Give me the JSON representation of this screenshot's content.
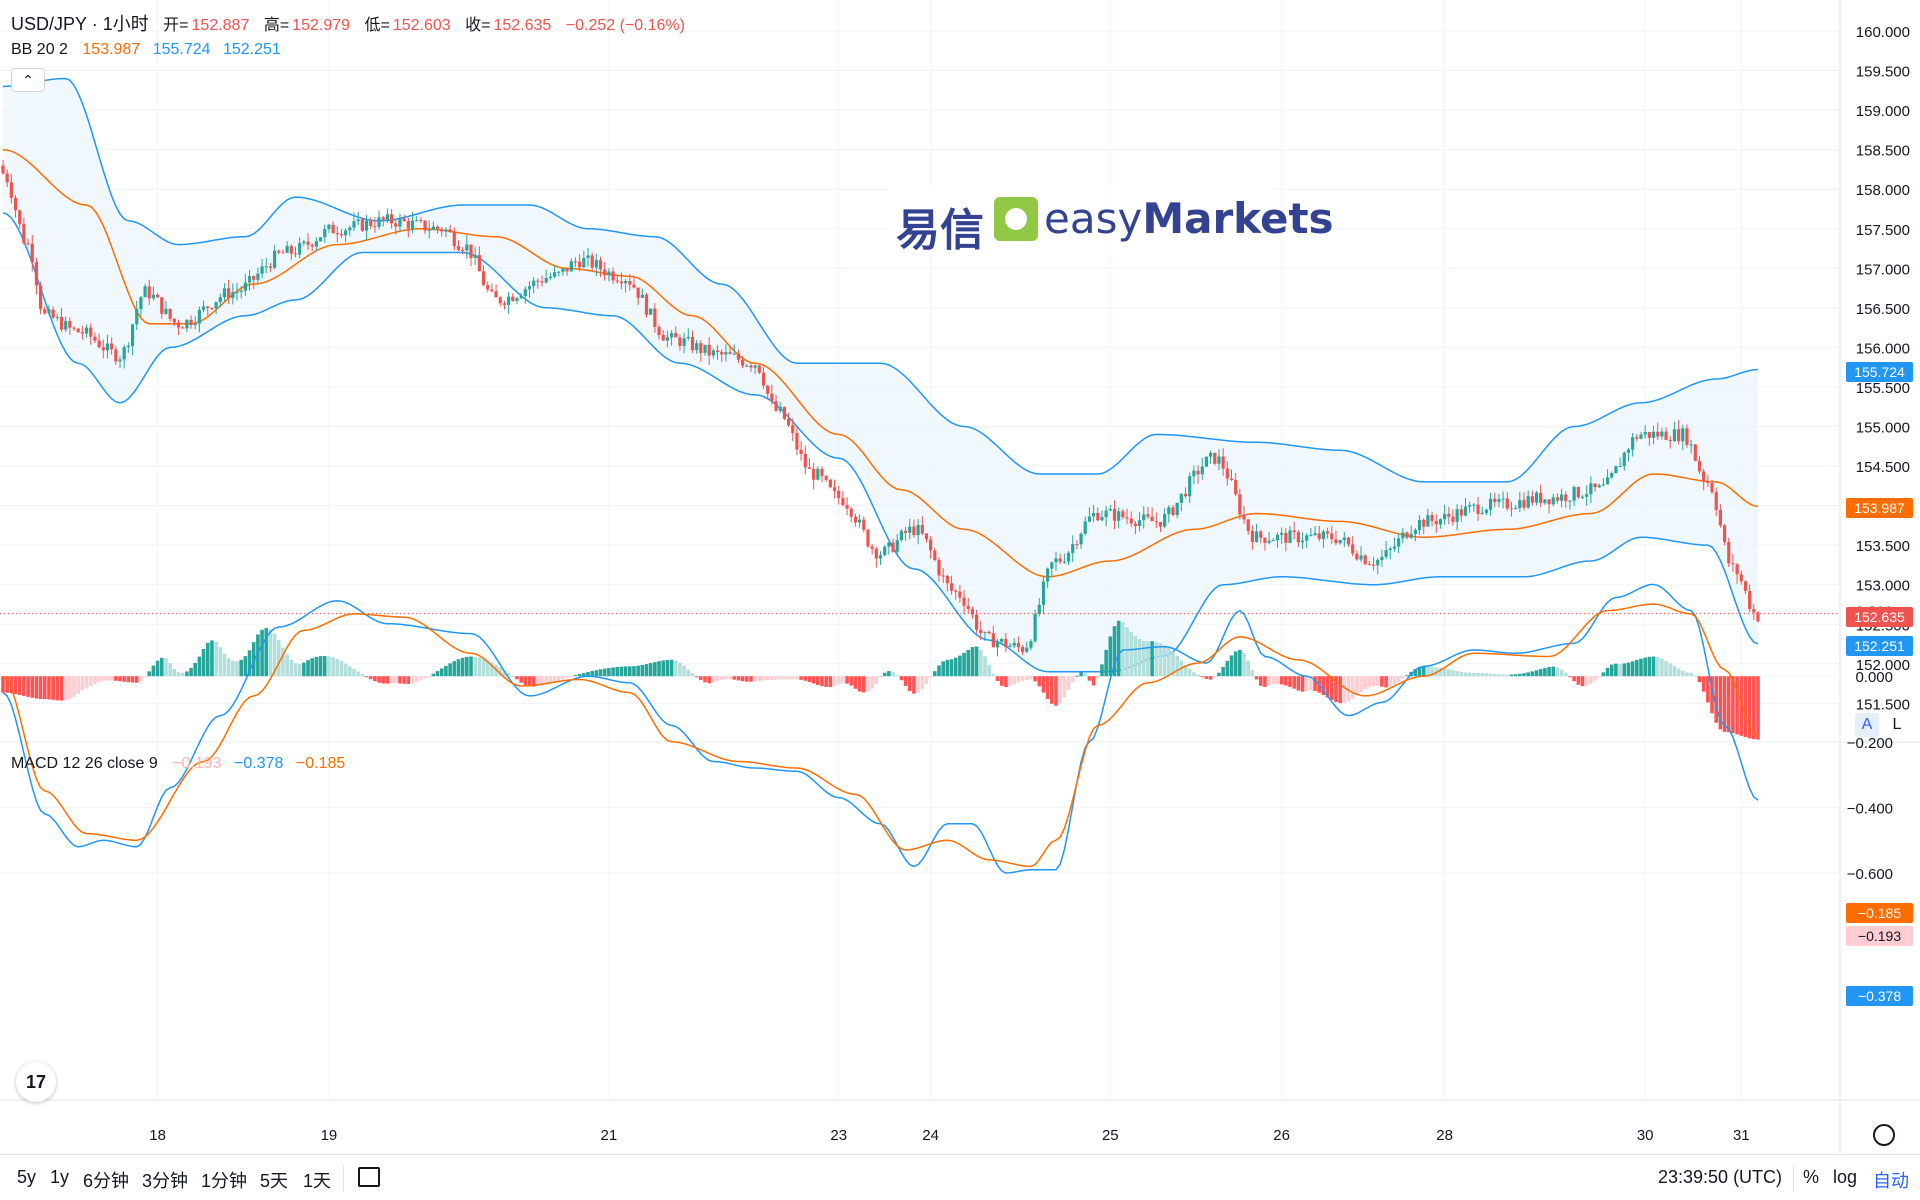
{
  "header": {
    "symbol": "USD/JPY · 1小时",
    "open_label": "开=",
    "open": "152.887",
    "high_label": "高=",
    "high": "152.979",
    "low_label": "低=",
    "low": "152.603",
    "close_label": "收=",
    "close": "152.635",
    "change": "−0.252 (−0.16%)"
  },
  "bb_legend": {
    "name": "BB 20 2",
    "basis": "153.987",
    "upper": "155.724",
    "lower": "152.251"
  },
  "macd_legend": {
    "name": "MACD 12 26 close 9",
    "histogram": "−0.193",
    "macd": "−0.378",
    "signal": "−0.185"
  },
  "price_axis": {
    "labels": [
      "160.000",
      "159.500",
      "159.000",
      "158.500",
      "158.000",
      "157.500",
      "157.000",
      "156.500",
      "156.000",
      "155.500",
      "155.000",
      "154.500",
      "154.000",
      "153.500",
      "153.000",
      "152.500",
      "152.000",
      "151.500"
    ],
    "badge_upper": "155.724",
    "badge_basis": "153.987",
    "badge_last": "152.635",
    "badge_lower": "152.251"
  },
  "macd_axis": {
    "labels": [
      "0.200",
      "0.000",
      "−0.200",
      "−0.400",
      "−0.600"
    ],
    "badge_signal": "−0.185",
    "badge_hist": "−0.193",
    "badge_macd": "−0.378"
  },
  "time_axis": {
    "labels": [
      "18",
      "19",
      "21",
      "23",
      "24",
      "25",
      "26",
      "28",
      "30",
      "31"
    ]
  },
  "scale_buttons": {
    "auto_label": "A",
    "log_label": "L"
  },
  "toolbar": {
    "ranges": [
      "5y",
      "1y",
      "6分钟",
      "3分钟",
      "1分钟",
      "5天",
      "1天"
    ],
    "clock": "23:39:50 (UTC)",
    "percent": "%",
    "log": "log",
    "auto": "自动"
  },
  "watermark": {
    "cn": "易信",
    "en_prefix": "easy",
    "en_suffix": "Markets"
  },
  "colors": {
    "up": "#26a69a",
    "down": "#ef5350",
    "bb_upper": "#2196f3",
    "bb_basis": "#ff6d00",
    "bb_fill": "#e3f2fd",
    "macd_line": "#2196f3",
    "signal_line": "#ff6d00",
    "hist_up_strong": "#26a69a",
    "hist_up_weak": "#b2dfdb",
    "hist_down_strong": "#ff5252",
    "hist_down_weak": "#ffcdd2"
  },
  "chart_data": {
    "type": "candlestick",
    "title": "USD/JPY · 1小时",
    "price_ylim": [
      151.5,
      160.0
    ],
    "last_close": 152.635,
    "bb_last": {
      "upper": 155.724,
      "basis": 153.987,
      "lower": 152.251
    },
    "macd_ylim": [
      -0.6,
      0.2
    ],
    "macd_last": {
      "macd": -0.378,
      "signal": -0.185,
      "histogram": -0.193
    },
    "day_labels": [
      "18",
      "19",
      "21",
      "23",
      "24",
      "25",
      "26",
      "28",
      "30",
      "31"
    ],
    "close_anchors": [
      [
        0,
        158.2
      ],
      [
        6,
        157.3
      ],
      [
        10,
        156.4
      ],
      [
        18,
        156.2
      ],
      [
        28,
        155.9
      ],
      [
        34,
        156.7
      ],
      [
        42,
        156.3
      ],
      [
        55,
        156.7
      ],
      [
        68,
        157.2
      ],
      [
        80,
        157.5
      ],
      [
        92,
        157.6
      ],
      [
        105,
        157.5
      ],
      [
        110,
        157.3
      ],
      [
        118,
        156.6
      ],
      [
        132,
        156.9
      ],
      [
        138,
        157.1
      ],
      [
        148,
        156.9
      ],
      [
        160,
        156.1
      ],
      [
        172,
        155.9
      ],
      [
        180,
        155.8
      ],
      [
        185,
        155.2
      ],
      [
        194,
        154.4
      ],
      [
        200,
        154.1
      ],
      [
        210,
        153.4
      ],
      [
        218,
        153.7
      ],
      [
        228,
        152.9
      ],
      [
        236,
        152.3
      ],
      [
        244,
        152.2
      ],
      [
        252,
        153.3
      ],
      [
        262,
        153.9
      ],
      [
        276,
        153.8
      ],
      [
        290,
        154.6
      ],
      [
        300,
        153.6
      ],
      [
        318,
        153.6
      ],
      [
        328,
        153.3
      ],
      [
        340,
        153.8
      ],
      [
        356,
        154.0
      ],
      [
        370,
        154.1
      ],
      [
        382,
        154.2
      ],
      [
        392,
        154.9
      ],
      [
        402,
        154.9
      ],
      [
        408,
        154.3
      ],
      [
        414,
        153.2
      ],
      [
        420,
        152.6
      ]
    ],
    "upper_anchors": [
      [
        0,
        159.3
      ],
      [
        15,
        159.4
      ],
      [
        30,
        157.6
      ],
      [
        42,
        157.3
      ],
      [
        58,
        157.4
      ],
      [
        70,
        157.9
      ],
      [
        90,
        157.6
      ],
      [
        110,
        157.8
      ],
      [
        126,
        157.8
      ],
      [
        140,
        157.5
      ],
      [
        156,
        157.4
      ],
      [
        172,
        156.8
      ],
      [
        190,
        155.8
      ],
      [
        210,
        155.8
      ],
      [
        230,
        155.0
      ],
      [
        248,
        154.4
      ],
      [
        262,
        154.4
      ],
      [
        276,
        154.9
      ],
      [
        300,
        154.8
      ],
      [
        320,
        154.7
      ],
      [
        340,
        154.3
      ],
      [
        360,
        154.3
      ],
      [
        376,
        155.0
      ],
      [
        392,
        155.3
      ],
      [
        410,
        155.6
      ],
      [
        420,
        155.72
      ]
    ],
    "basis_anchors": [
      [
        0,
        158.5
      ],
      [
        20,
        157.8
      ],
      [
        35,
        156.3
      ],
      [
        45,
        156.3
      ],
      [
        60,
        156.8
      ],
      [
        80,
        157.3
      ],
      [
        100,
        157.5
      ],
      [
        118,
        157.4
      ],
      [
        135,
        157.0
      ],
      [
        150,
        156.9
      ],
      [
        165,
        156.4
      ],
      [
        180,
        155.8
      ],
      [
        200,
        154.9
      ],
      [
        215,
        154.2
      ],
      [
        230,
        153.7
      ],
      [
        250,
        153.1
      ],
      [
        265,
        153.3
      ],
      [
        285,
        153.7
      ],
      [
        300,
        153.9
      ],
      [
        320,
        153.8
      ],
      [
        340,
        153.6
      ],
      [
        360,
        153.7
      ],
      [
        380,
        153.9
      ],
      [
        395,
        154.4
      ],
      [
        410,
        154.3
      ],
      [
        420,
        153.99
      ]
    ],
    "lower_anchors": [
      [
        0,
        157.7
      ],
      [
        18,
        155.8
      ],
      [
        28,
        155.3
      ],
      [
        40,
        156.0
      ],
      [
        58,
        156.4
      ],
      [
        70,
        156.6
      ],
      [
        86,
        157.2
      ],
      [
        110,
        157.2
      ],
      [
        130,
        156.5
      ],
      [
        146,
        156.4
      ],
      [
        162,
        155.8
      ],
      [
        180,
        155.4
      ],
      [
        200,
        154.6
      ],
      [
        218,
        153.2
      ],
      [
        236,
        152.3
      ],
      [
        250,
        151.9
      ],
      [
        265,
        151.9
      ],
      [
        278,
        152.1
      ],
      [
        292,
        153.0
      ],
      [
        306,
        153.1
      ],
      [
        328,
        153.0
      ],
      [
        344,
        153.1
      ],
      [
        364,
        153.1
      ],
      [
        380,
        153.3
      ],
      [
        392,
        153.6
      ],
      [
        408,
        153.5
      ],
      [
        420,
        152.25
      ]
    ],
    "macd_anchors": [
      [
        0,
        -0.05
      ],
      [
        10,
        -0.42
      ],
      [
        18,
        -0.52
      ],
      [
        24,
        -0.5
      ],
      [
        32,
        -0.52
      ],
      [
        40,
        -0.34
      ],
      [
        52,
        -0.12
      ],
      [
        66,
        0.15
      ],
      [
        80,
        0.23
      ],
      [
        92,
        0.16
      ],
      [
        112,
        0.13
      ],
      [
        126,
        -0.06
      ],
      [
        140,
        0.0
      ],
      [
        150,
        -0.02
      ],
      [
        160,
        -0.15
      ],
      [
        170,
        -0.26
      ],
      [
        180,
        -0.28
      ],
      [
        190,
        -0.29
      ],
      [
        200,
        -0.37
      ],
      [
        210,
        -0.45
      ],
      [
        218,
        -0.58
      ],
      [
        226,
        -0.45
      ],
      [
        232,
        -0.45
      ],
      [
        240,
        -0.6
      ],
      [
        246,
        -0.59
      ],
      [
        252,
        -0.59
      ],
      [
        260,
        -0.2
      ],
      [
        268,
        0.08
      ],
      [
        278,
        0.09
      ],
      [
        288,
        0.04
      ],
      [
        296,
        0.2
      ],
      [
        302,
        0.06
      ],
      [
        312,
        0.0
      ],
      [
        322,
        -0.12
      ],
      [
        330,
        -0.08
      ],
      [
        340,
        0.03
      ],
      [
        352,
        0.08
      ],
      [
        362,
        0.07
      ],
      [
        376,
        0.1
      ],
      [
        386,
        0.24
      ],
      [
        395,
        0.28
      ],
      [
        404,
        0.2
      ],
      [
        412,
        -0.15
      ],
      [
        420,
        -0.378
      ]
    ],
    "signal_anchors": [
      [
        0,
        0.0
      ],
      [
        10,
        -0.35
      ],
      [
        20,
        -0.48
      ],
      [
        32,
        -0.5
      ],
      [
        48,
        -0.26
      ],
      [
        60,
        -0.06
      ],
      [
        72,
        0.14
      ],
      [
        84,
        0.19
      ],
      [
        96,
        0.18
      ],
      [
        112,
        0.07
      ],
      [
        124,
        -0.03
      ],
      [
        138,
        -0.01
      ],
      [
        150,
        -0.05
      ],
      [
        160,
        -0.2
      ],
      [
        176,
        -0.26
      ],
      [
        190,
        -0.28
      ],
      [
        204,
        -0.36
      ],
      [
        216,
        -0.53
      ],
      [
        226,
        -0.5
      ],
      [
        236,
        -0.56
      ],
      [
        246,
        -0.58
      ],
      [
        252,
        -0.5
      ],
      [
        262,
        -0.15
      ],
      [
        274,
        -0.02
      ],
      [
        286,
        0.04
      ],
      [
        296,
        0.12
      ],
      [
        310,
        0.05
      ],
      [
        326,
        -0.06
      ],
      [
        340,
        0.0
      ],
      [
        352,
        0.07
      ],
      [
        370,
        0.06
      ],
      [
        384,
        0.2
      ],
      [
        395,
        0.22
      ],
      [
        404,
        0.19
      ],
      [
        412,
        0.02
      ],
      [
        420,
        -0.185
      ]
    ]
  }
}
